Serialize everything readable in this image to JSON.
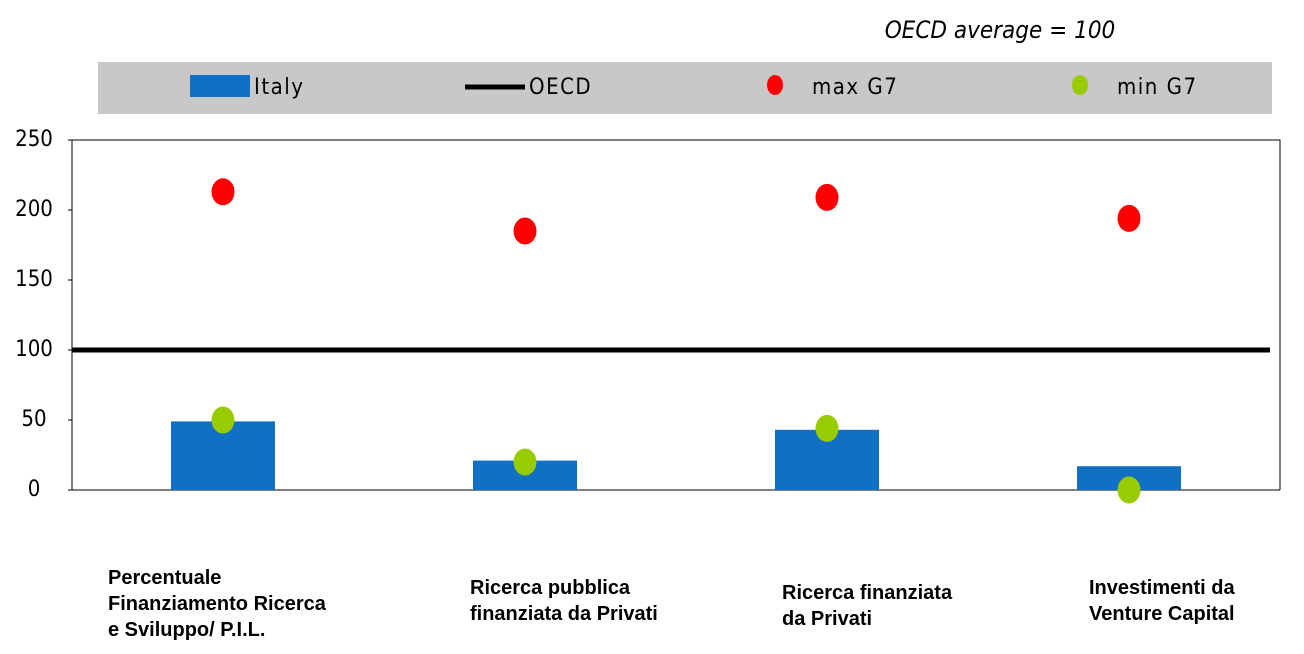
{
  "chart_data": {
    "type": "bar",
    "annotation": "OECD average = 100",
    "categories": [
      "Percentuale\nFinanziamento Ricerca\ne Sviluppo/ P.I.L.",
      "Ricerca pubblica\nfinanziata da Privati",
      "Ricerca finanziata\nda Privati",
      "Investimenti da\nVenture Capital"
    ],
    "series": [
      {
        "name": "Italy",
        "type": "bar",
        "color": "#1170c4",
        "values": [
          49,
          21,
          43,
          17
        ]
      },
      {
        "name": "OECD",
        "type": "line",
        "color": "#000000",
        "values": [
          100,
          100,
          100,
          100
        ]
      },
      {
        "name": "max G7",
        "type": "dot",
        "color": "#ff0000",
        "values": [
          213,
          185,
          209,
          194
        ]
      },
      {
        "name": "min G7",
        "type": "dot",
        "color": "#99cc00",
        "values": [
          50,
          20,
          44,
          0
        ]
      }
    ],
    "ylim": [
      0,
      250
    ],
    "yticks": [
      0,
      50,
      100,
      150,
      200,
      250
    ],
    "legend": "top"
  }
}
